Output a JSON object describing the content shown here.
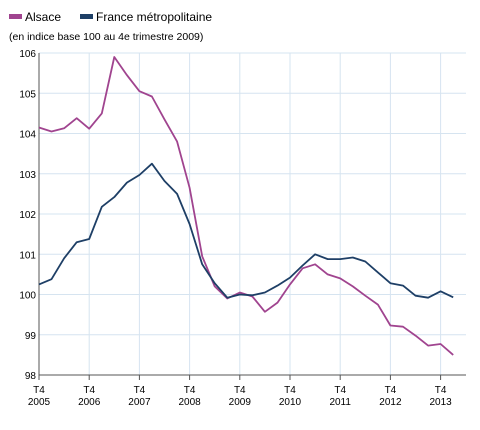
{
  "chart_data": {
    "type": "line",
    "subtitle": "(en indice base 100 au 4e trimestre 2009)",
    "ylim": [
      98,
      106
    ],
    "yticks": [
      "98",
      "99",
      "100",
      "101",
      "102",
      "103",
      "104",
      "105",
      "106"
    ],
    "xticks": [
      {
        "q": "T4",
        "year": "2005"
      },
      {
        "q": "T4",
        "year": "2006"
      },
      {
        "q": "T4",
        "year": "2007"
      },
      {
        "q": "T4",
        "year": "2008"
      },
      {
        "q": "T4",
        "year": "2009"
      },
      {
        "q": "T4",
        "year": "2010"
      },
      {
        "q": "T4",
        "year": "2011"
      },
      {
        "q": "T4",
        "year": "2012"
      },
      {
        "q": "T4",
        "year": "2013"
      }
    ],
    "grid": true,
    "legend_position": "top-left",
    "series": [
      {
        "name": "Alsace",
        "color": "#a0448f",
        "values": [
          104.15,
          104.05,
          104.13,
          104.38,
          104.12,
          104.5,
          105.9,
          105.45,
          105.05,
          104.92,
          104.35,
          103.8,
          102.65,
          100.95,
          100.2,
          99.9,
          100.05,
          99.95,
          99.57,
          99.8,
          100.25,
          100.65,
          100.75,
          100.5,
          100.4,
          100.2,
          99.97,
          99.75,
          99.23,
          99.2,
          98.98,
          98.73,
          98.77,
          98.5
        ]
      },
      {
        "name": "France métropolitaine",
        "color": "#1e3f66",
        "values": [
          100.25,
          100.38,
          100.9,
          101.3,
          101.38,
          102.18,
          102.42,
          102.78,
          102.97,
          103.25,
          102.82,
          102.5,
          101.75,
          100.75,
          100.28,
          99.92,
          100.0,
          99.98,
          100.05,
          100.22,
          100.42,
          100.72,
          101.0,
          100.88,
          100.88,
          100.92,
          100.82,
          100.55,
          100.28,
          100.22,
          99.97,
          99.92,
          100.08,
          99.93
        ]
      }
    ]
  }
}
